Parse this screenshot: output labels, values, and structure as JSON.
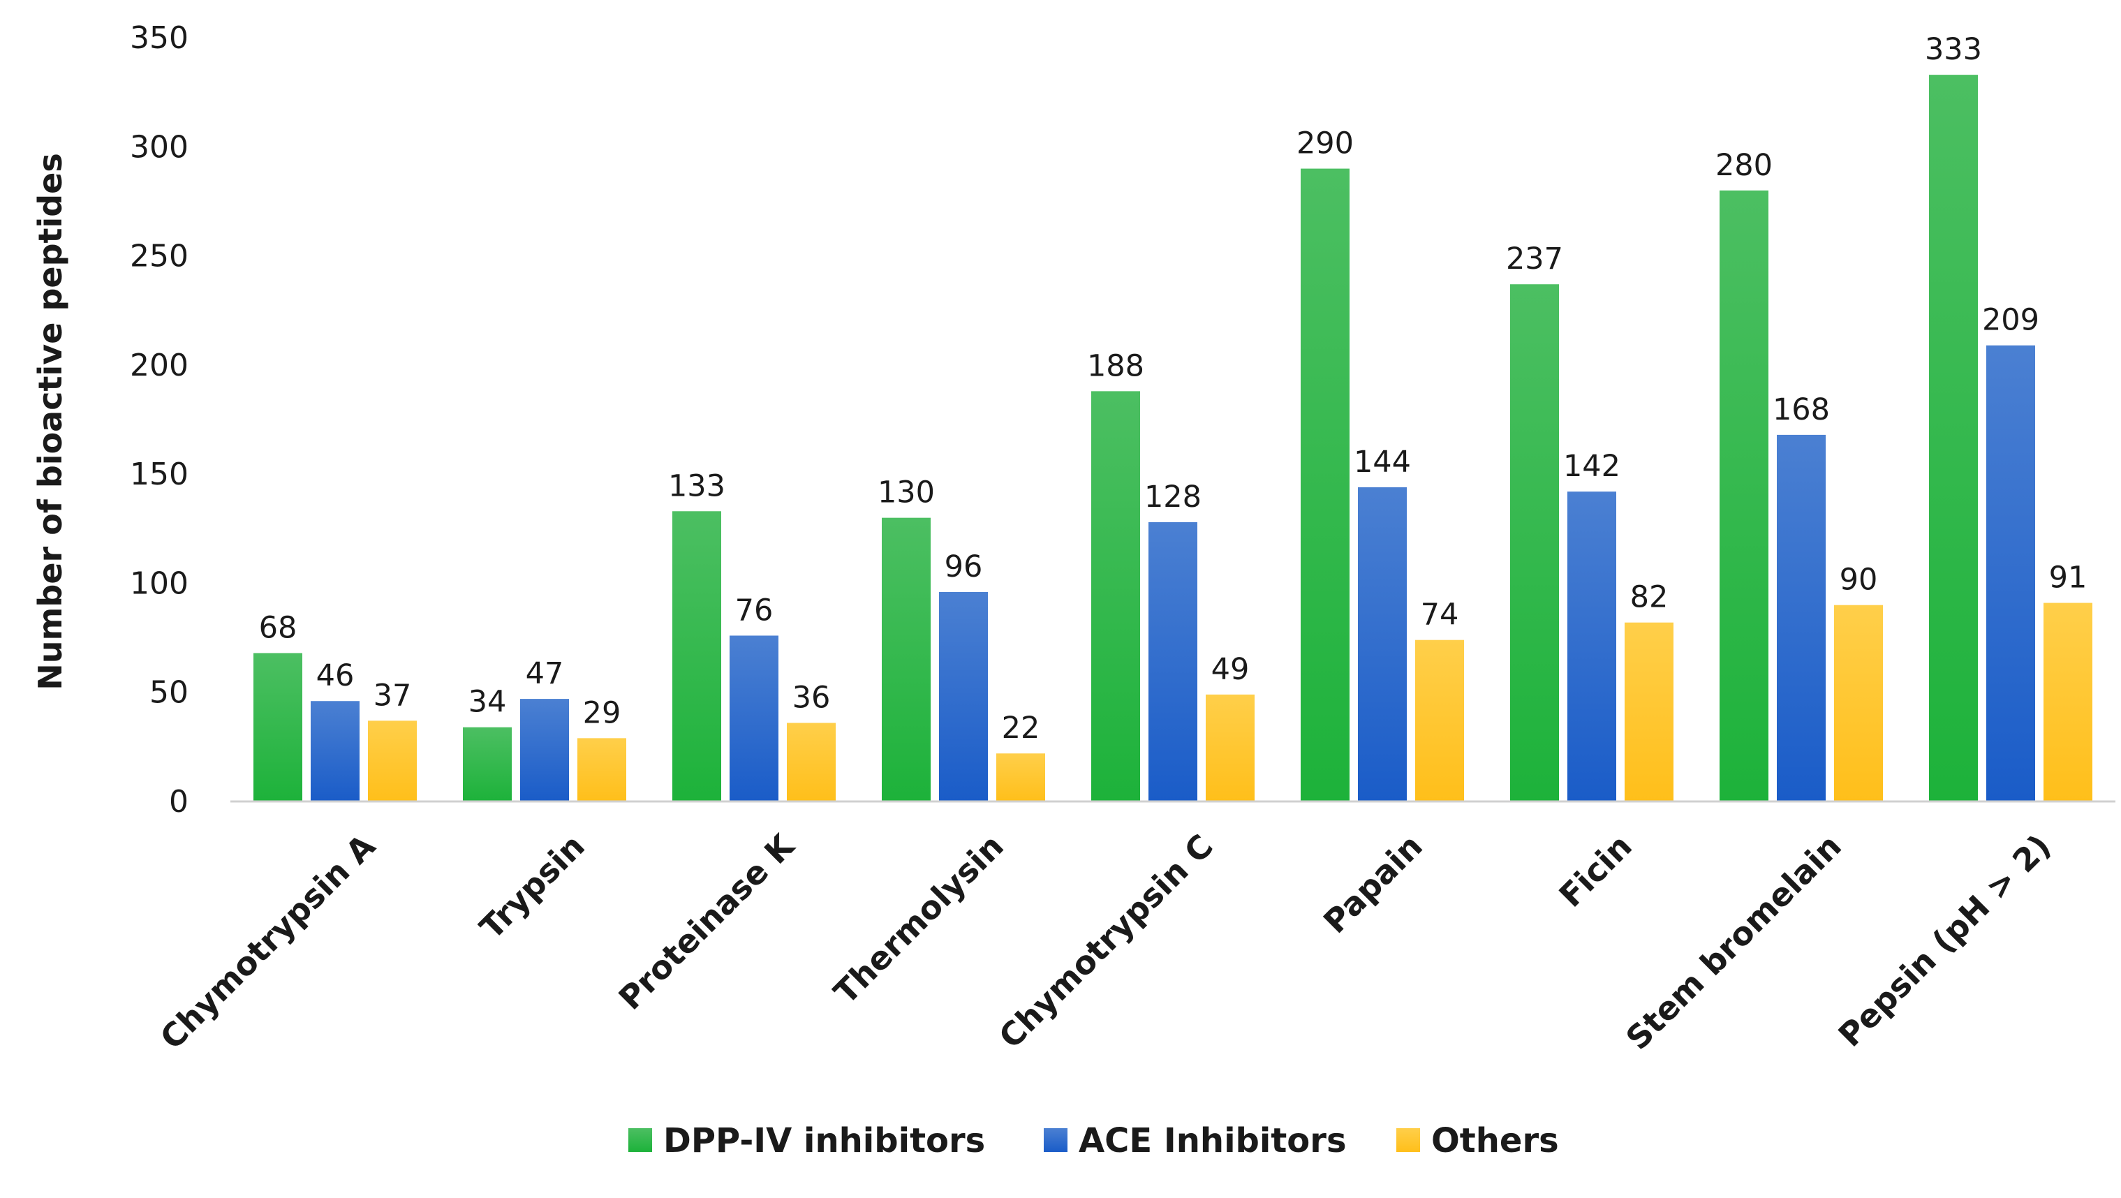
{
  "chart_data": {
    "type": "bar",
    "title": "",
    "xlabel": "",
    "ylabel": "Number of bioactive peptides",
    "ylim": [
      0,
      350
    ],
    "yticks": [
      0,
      50,
      100,
      150,
      200,
      250,
      300,
      350
    ],
    "grid": false,
    "legend_position": "bottom",
    "categories": [
      "Chymotrypsin A",
      "Trypsin",
      "Proteinase K",
      "Thermolysin",
      "Chymotrypsin C",
      "Papain",
      "Ficin",
      "Stem bromelain",
      "Pepsin (pH > 2)"
    ],
    "series": [
      {
        "name": "DPP-IV inhibitors",
        "color": "#1db23a",
        "color_light": "#4cbf62",
        "values": [
          68,
          34,
          133,
          130,
          188,
          290,
          237,
          280,
          333
        ]
      },
      {
        "name": "ACE Inhibitors",
        "color": "#1a5cc8",
        "color_light": "#4b80d2",
        "values": [
          46,
          47,
          76,
          96,
          128,
          144,
          142,
          168,
          209
        ]
      },
      {
        "name": "Others",
        "color": "#ffbf1a",
        "color_light": "#ffcf4a",
        "values": [
          37,
          29,
          36,
          22,
          49,
          74,
          82,
          90,
          91
        ]
      }
    ]
  }
}
